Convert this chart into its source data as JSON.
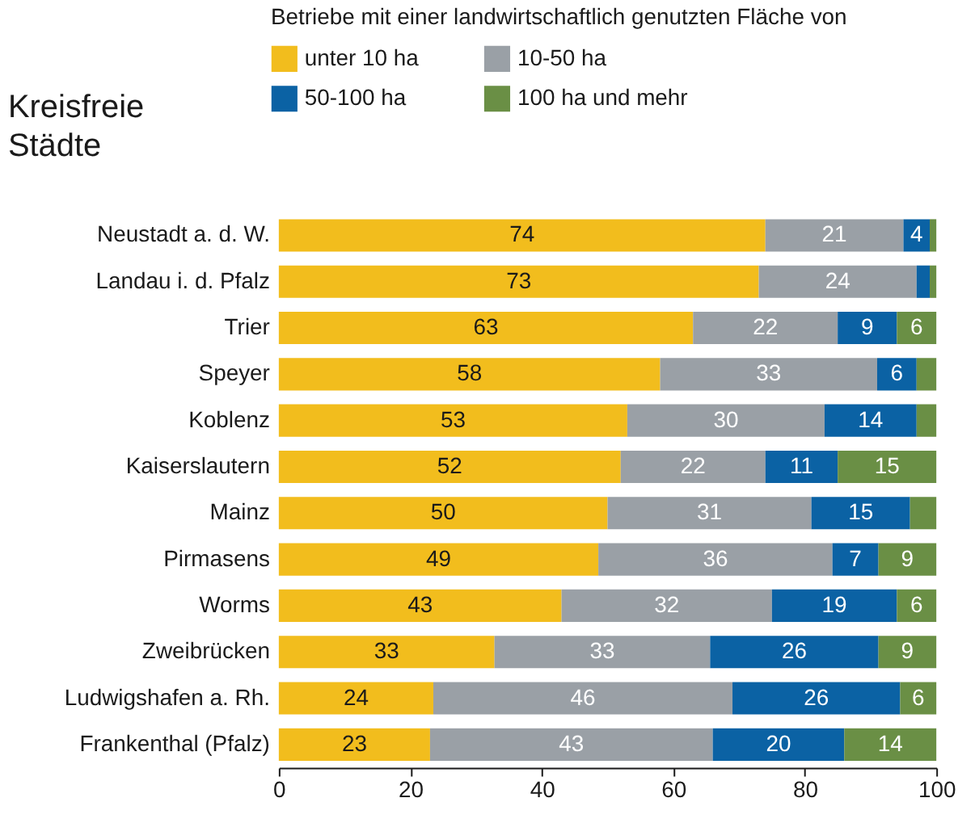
{
  "chart_data": {
    "type": "bar",
    "orientation": "horizontal",
    "stacked": true,
    "ylabel": "Kreisfreie\nStädte",
    "legend_title": "Betriebe mit einer landwirtschaftlich\ngenutzten Fläche von",
    "legend": "top",
    "grid": false,
    "categories": [
      "Neustadt a. d. W.",
      "Landau i. d. Pfalz",
      "Trier",
      "Speyer",
      "Koblenz",
      "Kaiserslautern",
      "Mainz",
      "Pirmasens",
      "Worms",
      "Zweibrücken",
      "Ludwigshafen a. Rh.",
      "Frankenthal (Pfalz)"
    ],
    "xlim": [
      0,
      100
    ],
    "xticks": [
      0,
      20,
      40,
      60,
      80,
      100
    ],
    "series": [
      {
        "name": "unter 10 ha",
        "color": "#f2bd1d",
        "values": [
          74,
          73,
          63,
          58,
          53,
          52,
          50,
          48.6,
          43,
          32.8,
          23.5,
          23
        ],
        "value_labels": [
          "74",
          "73",
          "63",
          "58",
          "53",
          "52",
          "50",
          "49",
          "43",
          "33",
          "24",
          "23"
        ]
      },
      {
        "name": "10-50 ha",
        "color": "#9aa0a6",
        "values": [
          21,
          24,
          22,
          33,
          30,
          22,
          31,
          35.6,
          32,
          32.8,
          45.5,
          43
        ],
        "value_labels": [
          "21",
          "24",
          "22",
          "33",
          "30",
          "22",
          "31",
          "36",
          "32",
          "33",
          "46",
          "43"
        ]
      },
      {
        "name": "50-100 ha",
        "color": "#0b62a4",
        "values": [
          4,
          2,
          9,
          6,
          14,
          11,
          15,
          7,
          19,
          25.6,
          25.5,
          20
        ],
        "value_labels": [
          "4",
          null,
          "9",
          "6",
          "14",
          "11",
          "15",
          "7",
          "19",
          "26",
          "26",
          "20"
        ]
      },
      {
        "name": "100 ha und mehr",
        "color": "#6a8f45",
        "values": [
          1,
          1,
          6,
          3,
          3,
          15,
          4,
          8.8,
          6,
          8.8,
          5.5,
          14
        ],
        "value_labels": [
          null,
          null,
          "6",
          null,
          null,
          "15",
          null,
          "9",
          "6",
          "9",
          "6",
          "14"
        ]
      }
    ]
  }
}
